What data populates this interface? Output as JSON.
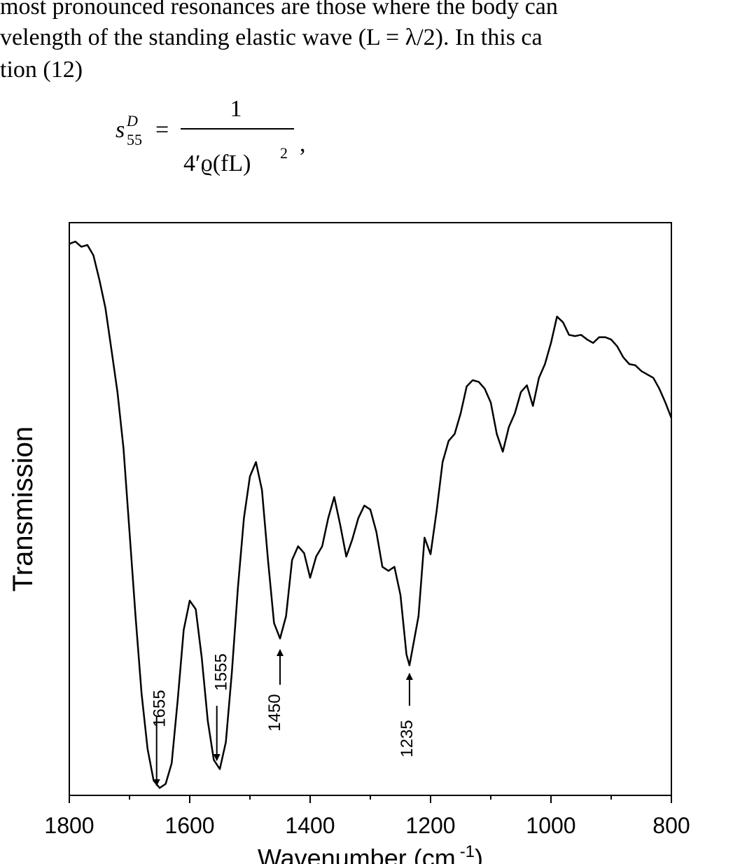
{
  "text_lines": [
    "most pronounced resonances are those where the body can",
    "velength of the standing elastic wave (L = λ/2). In this ca",
    "tion (12)"
  ],
  "equation": {
    "lhs": "s",
    "sup": "D",
    "sub": "55",
    "equals": "=",
    "numerator": "1",
    "denominator": "4′ϱ(fL)",
    "power": "2",
    "trail": ","
  },
  "chart_data": {
    "type": "line",
    "color": "#000000",
    "x_label": "Wavenumber (cm",
    "x_label_sup": "-1",
    "x_label_end": ")",
    "y_label": "Transmission",
    "xlim": [
      1800,
      800
    ],
    "ylim": [
      0,
      100
    ],
    "xticks": [
      1800,
      1600,
      1400,
      1200,
      1000,
      800
    ],
    "xminor_ticks": [
      1700,
      1500,
      1300,
      1100,
      900
    ],
    "x": [
      1800,
      1790,
      1780,
      1770,
      1760,
      1750,
      1740,
      1730,
      1720,
      1710,
      1700,
      1690,
      1680,
      1670,
      1660,
      1650,
      1640,
      1630,
      1620,
      1610,
      1600,
      1590,
      1580,
      1570,
      1560,
      1550,
      1540,
      1530,
      1520,
      1510,
      1500,
      1490,
      1480,
      1470,
      1460,
      1450,
      1440,
      1430,
      1420,
      1410,
      1400,
      1390,
      1380,
      1370,
      1360,
      1350,
      1340,
      1330,
      1320,
      1310,
      1300,
      1290,
      1280,
      1270,
      1260,
      1250,
      1240,
      1235,
      1220,
      1210,
      1200,
      1190,
      1180,
      1170,
      1160,
      1150,
      1140,
      1130,
      1120,
      1110,
      1100,
      1090,
      1080,
      1070,
      1060,
      1050,
      1040,
      1030,
      1020,
      1010,
      1000,
      990,
      980,
      970,
      960,
      950,
      940,
      930,
      920,
      910,
      900,
      890,
      880,
      870,
      860,
      850,
      840,
      830,
      820,
      810,
      800
    ],
    "values": [
      96.3,
      96.7,
      95.8,
      96.1,
      94.3,
      90.0,
      85.1,
      77.8,
      70.4,
      60.6,
      46.0,
      31.3,
      17.8,
      8.1,
      2.6,
      1.3,
      2.0,
      5.6,
      16.6,
      28.9,
      34.0,
      32.5,
      24.0,
      13.0,
      6.2,
      4.6,
      9.3,
      21.5,
      36.2,
      48.4,
      55.7,
      58.2,
      53.3,
      41.1,
      30.1,
      27.4,
      31.3,
      41.1,
      43.5,
      42.3,
      38.0,
      41.7,
      43.5,
      48.4,
      52.1,
      47.2,
      41.7,
      44.7,
      48.4,
      50.6,
      49.9,
      46.0,
      39.9,
      39.2,
      39.9,
      35.0,
      24.6,
      22.7,
      31.3,
      45.0,
      42.1,
      49.6,
      58.2,
      61.9,
      63.1,
      66.7,
      71.4,
      72.5,
      72.2,
      71.0,
      68.6,
      63.1,
      60.0,
      64.3,
      66.7,
      70.4,
      71.6,
      68.0,
      72.9,
      75.3,
      79.0,
      83.6,
      82.6,
      80.4,
      80.2,
      80.4,
      79.6,
      79.0,
      80.0,
      80.0,
      79.6,
      78.4,
      76.5,
      75.3,
      75.1,
      74.1,
      73.5,
      72.9,
      71.0,
      68.6,
      65.9
    ],
    "annotations": [
      {
        "text": "1655",
        "x": 1655,
        "arrow": "down"
      },
      {
        "text": "1555",
        "x": 1555,
        "arrow": "down"
      },
      {
        "text": "1450",
        "x": 1450,
        "arrow": "up"
      },
      {
        "text": "1235",
        "x": 1235,
        "arrow": "up"
      }
    ]
  }
}
